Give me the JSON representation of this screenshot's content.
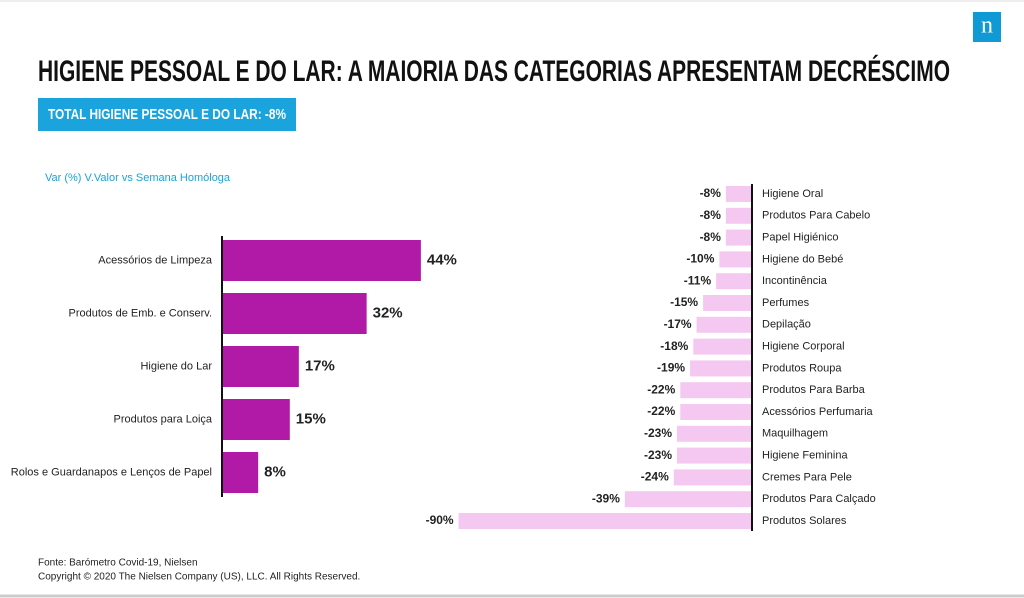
{
  "title": "HIGIENE PESSOAL E DO LAR: A MAIORIA DAS CATEGORIAS APRESENTAM DECRÉSCIMO",
  "badge": "TOTAL HIGIENE PESSOAL E DO LAR: -8%",
  "axis_note": "Var (%) V.Valor vs Semana Homóloga",
  "logo": "n",
  "source": "Fonte: Barómetro Covid-19, Nielsen",
  "copyright": "Copyright © 2020 The Nielsen Company (US), LLC. All Rights Reserved.",
  "chart_data": [
    {
      "type": "bar",
      "orientation": "horizontal",
      "color": "#b01aa7",
      "categories": [
        "Acessórios de Limpeza",
        "Produtos de Emb. e Conserv.",
        "Higiene do Lar",
        "Produtos para Loiça",
        "Rolos e Guardanapos e Lenços de Papel"
      ],
      "values": [
        44,
        32,
        17,
        15,
        8
      ],
      "value_labels": [
        "44%",
        "32%",
        "17%",
        "15%",
        "8%"
      ]
    },
    {
      "type": "bar",
      "orientation": "horizontal",
      "color": "#f5c8f1",
      "categories": [
        "Higiene Oral",
        "Produtos Para Cabelo",
        "Papel Higiénico",
        "Higiene do Bebé",
        "Incontinência",
        "Perfumes",
        "Depilação",
        "Higiene Corporal",
        "Produtos Roupa",
        "Produtos Para Barba",
        "Acessórios Perfumaria",
        "Maquilhagem",
        "Higiene Feminina",
        "Cremes Para Pele",
        "Produtos Para Calçado",
        "Produtos Solares"
      ],
      "values": [
        -8,
        -8,
        -8,
        -10,
        -11,
        -15,
        -17,
        -18,
        -19,
        -22,
        -22,
        -23,
        -23,
        -24,
        -39,
        -90
      ],
      "value_labels": [
        "-8%",
        "-8%",
        "-8%",
        "-10%",
        "-11%",
        "-15%",
        "-17%",
        "-18%",
        "-19%",
        "-22%",
        "-22%",
        "-23%",
        "-23%",
        "-24%",
        "-39%",
        "-90%"
      ]
    }
  ]
}
